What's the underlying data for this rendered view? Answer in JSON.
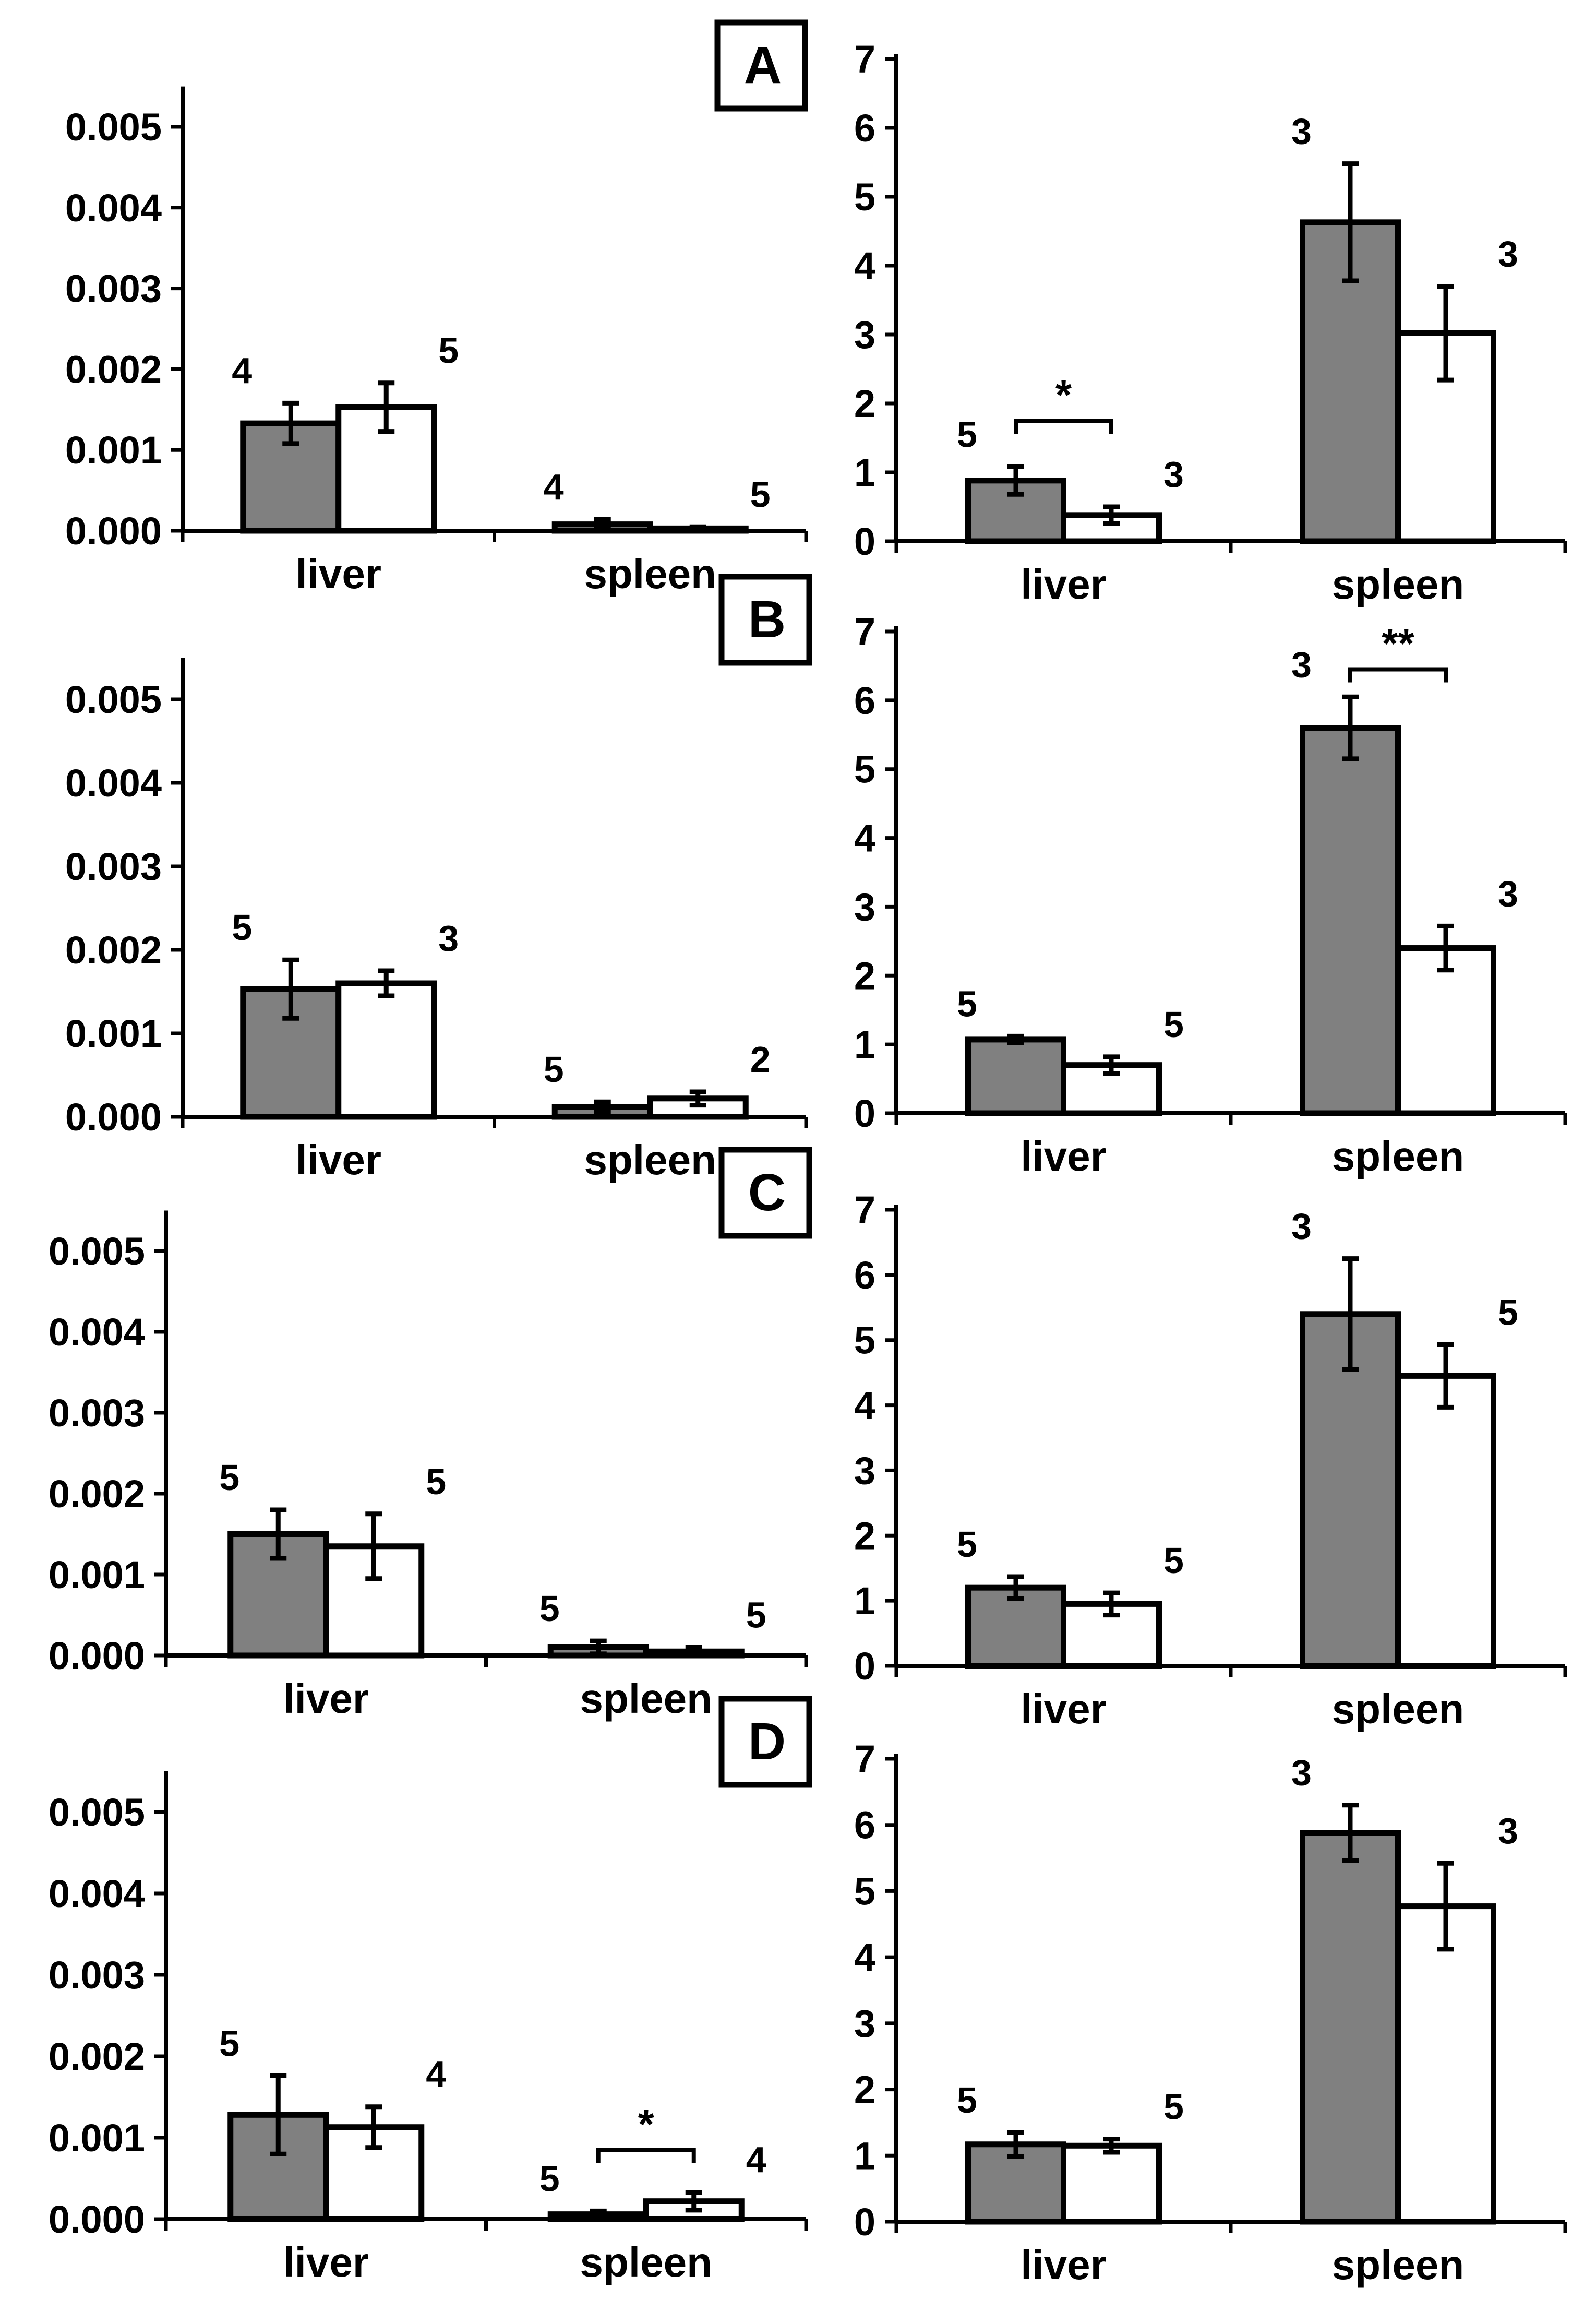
{
  "colors": {
    "grey_bar": "#808080",
    "white_bar": "#ffffff",
    "ink": "#000000"
  },
  "chart_data": [
    {
      "panel": "A",
      "side": "left",
      "type": "bar",
      "categories": [
        "liver",
        "spleen"
      ],
      "series": [
        {
          "name": "grey",
          "values": [
            0.00133,
            8e-05
          ],
          "errors": [
            0.00025,
            6e-05
          ],
          "n": [
            "4",
            "4"
          ]
        },
        {
          "name": "white",
          "values": [
            0.00153,
            3e-05
          ],
          "errors": [
            0.0003,
            2e-05
          ],
          "n": [
            "5",
            "5"
          ]
        }
      ],
      "ylim": [
        0,
        0.0055
      ],
      "yticks": [
        "0.000",
        "0.001",
        "0.002",
        "0.003",
        "0.004",
        "0.005"
      ],
      "significance": []
    },
    {
      "panel": "A",
      "side": "right",
      "type": "bar",
      "categories": [
        "liver",
        "spleen"
      ],
      "series": [
        {
          "name": "grey",
          "values": [
            0.88,
            4.63
          ],
          "errors": [
            0.2,
            0.85
          ],
          "n": [
            "5",
            "3"
          ]
        },
        {
          "name": "white",
          "values": [
            0.38,
            3.02
          ],
          "errors": [
            0.12,
            0.68
          ],
          "n": [
            "3",
            "3"
          ]
        }
      ],
      "ylim": [
        0,
        7
      ],
      "yticks": [
        "0",
        "1",
        "2",
        "3",
        "4",
        "5",
        "6",
        "7"
      ],
      "significance": [
        {
          "category": 0,
          "label": "*",
          "y": 1.75
        }
      ]
    },
    {
      "panel": "B",
      "side": "left",
      "type": "bar",
      "categories": [
        "liver",
        "spleen"
      ],
      "series": [
        {
          "name": "grey",
          "values": [
            0.00153,
            0.00012
          ],
          "errors": [
            0.00035,
            6e-05
          ],
          "n": [
            "5",
            "5"
          ]
        },
        {
          "name": "white",
          "values": [
            0.0016,
            0.00022
          ],
          "errors": [
            0.00015,
            8e-05
          ],
          "n": [
            "3",
            "2"
          ]
        }
      ],
      "ylim": [
        0,
        0.0055
      ],
      "yticks": [
        "0.000",
        "0.001",
        "0.002",
        "0.003",
        "0.004",
        "0.005"
      ],
      "significance": []
    },
    {
      "panel": "B",
      "side": "right",
      "type": "bar",
      "categories": [
        "liver",
        "spleen"
      ],
      "series": [
        {
          "name": "grey",
          "values": [
            1.07,
            5.6
          ],
          "errors": [
            0.05,
            0.45
          ],
          "n": [
            "5",
            "3"
          ]
        },
        {
          "name": "white",
          "values": [
            0.7,
            2.4
          ],
          "errors": [
            0.12,
            0.32
          ],
          "n": [
            "5",
            "3"
          ]
        }
      ],
      "ylim": [
        0,
        7
      ],
      "yticks": [
        "0",
        "1",
        "2",
        "3",
        "4",
        "5",
        "6",
        "7"
      ],
      "significance": [
        {
          "category": 1,
          "label": "**",
          "y": 6.45
        }
      ]
    },
    {
      "panel": "C",
      "side": "left",
      "type": "bar",
      "categories": [
        "liver",
        "spleen"
      ],
      "series": [
        {
          "name": "grey",
          "values": [
            0.0015,
            0.0001
          ],
          "errors": [
            0.0003,
            8e-05
          ],
          "n": [
            "5",
            "5"
          ]
        },
        {
          "name": "white",
          "values": [
            0.00135,
            5e-05
          ],
          "errors": [
            0.0004,
            5e-05
          ],
          "n": [
            "5",
            "5"
          ]
        }
      ],
      "ylim": [
        0,
        0.0055
      ],
      "yticks": [
        "0.000",
        "0.001",
        "0.002",
        "0.003",
        "0.004",
        "0.005"
      ],
      "significance": []
    },
    {
      "panel": "C",
      "side": "right",
      "type": "bar",
      "categories": [
        "liver",
        "spleen"
      ],
      "series": [
        {
          "name": "grey",
          "values": [
            1.2,
            5.4
          ],
          "errors": [
            0.17,
            0.85
          ],
          "n": [
            "5",
            "3"
          ]
        },
        {
          "name": "white",
          "values": [
            0.95,
            4.45
          ],
          "errors": [
            0.17,
            0.48
          ],
          "n": [
            "5",
            "5"
          ]
        }
      ],
      "ylim": [
        0,
        7
      ],
      "yticks": [
        "0",
        "1",
        "2",
        "3",
        "4",
        "5",
        "6",
        "7"
      ],
      "significance": []
    },
    {
      "panel": "D",
      "side": "left",
      "type": "bar",
      "categories": [
        "liver",
        "spleen"
      ],
      "series": [
        {
          "name": "grey",
          "values": [
            0.00128,
            6e-05
          ],
          "errors": [
            0.00048,
            4e-05
          ],
          "n": [
            "5",
            "5"
          ]
        },
        {
          "name": "white",
          "values": [
            0.00113,
            0.00022
          ],
          "errors": [
            0.00025,
            0.00011
          ],
          "n": [
            "4",
            "4"
          ]
        }
      ],
      "ylim": [
        0,
        0.0055
      ],
      "yticks": [
        "0.000",
        "0.001",
        "0.002",
        "0.003",
        "0.004",
        "0.005"
      ],
      "significance": [
        {
          "category": 1,
          "label": "*",
          "y": 0.00085
        }
      ]
    },
    {
      "panel": "D",
      "side": "right",
      "type": "bar",
      "categories": [
        "liver",
        "spleen"
      ],
      "series": [
        {
          "name": "grey",
          "values": [
            1.17,
            5.88
          ],
          "errors": [
            0.18,
            0.42
          ],
          "n": [
            "5",
            "3"
          ]
        },
        {
          "name": "white",
          "values": [
            1.15,
            4.77
          ],
          "errors": [
            0.1,
            0.65
          ],
          "n": [
            "5",
            "3"
          ]
        }
      ],
      "ylim": [
        0,
        7
      ],
      "yticks": [
        "0",
        "1",
        "2",
        "3",
        "4",
        "5",
        "6",
        "7"
      ],
      "significance": []
    }
  ]
}
